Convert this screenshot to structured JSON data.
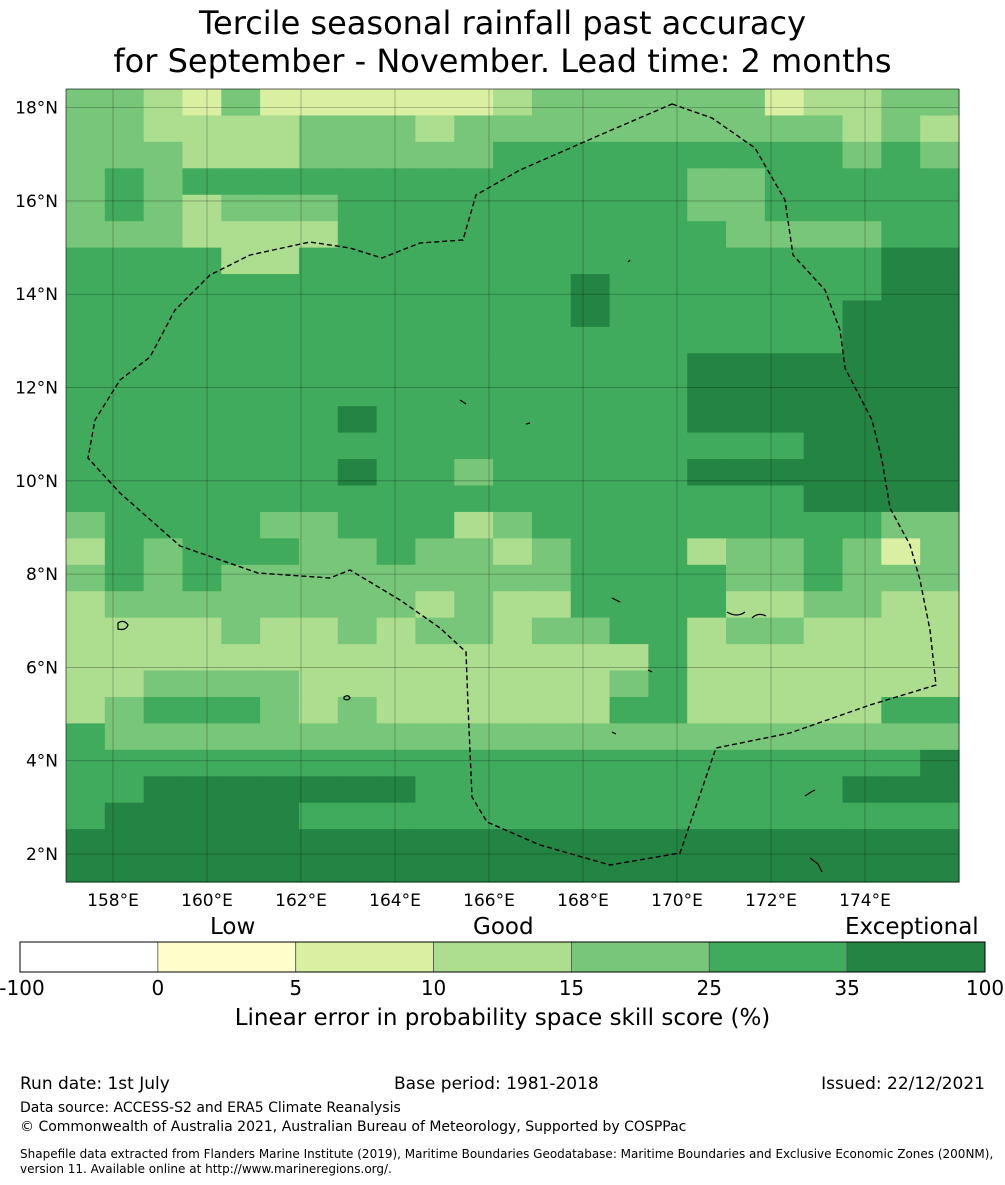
{
  "title": {
    "line1": "Tercile seasonal rainfall past accuracy",
    "line2": "for September - November. Lead time: 2 months"
  },
  "map": {
    "lat_ticks": [
      "18°N",
      "16°N",
      "14°N",
      "12°N",
      "10°N",
      "8°N",
      "6°N",
      "4°N",
      "2°N"
    ],
    "lon_ticks": [
      "158°E",
      "160°E",
      "162°E",
      "164°E",
      "166°E",
      "168°E",
      "170°E",
      "172°E",
      "174°E"
    ],
    "lat_range": [
      1.4,
      18.4
    ],
    "lon_range": [
      157.0,
      176.0
    ],
    "grid": true
  },
  "colorbar": {
    "category_labels": {
      "low": "Low",
      "good": "Good",
      "exceptional": "Exceptional"
    },
    "ticks": [
      "-100",
      "0",
      "5",
      "10",
      "15",
      "25",
      "35",
      "100"
    ],
    "colors": [
      "#ffffff",
      "#ffffcc",
      "#d9f0a3",
      "#addd8e",
      "#78c679",
      "#41ab5d",
      "#238443"
    ],
    "label": "Linear error in probability space skill score (%)"
  },
  "footer": {
    "run_date": "Run date: 1st July",
    "base_period": "Base period: 1981-2018",
    "issued": "Issued: 22/12/2021",
    "data_source": "Data source: ACCESS-S2 and ERA5 Climate Reanalysis",
    "copyright": "© Commonwealth of Australia 2021, Australian Bureau of Meteorology, Supported by COSPPac",
    "shapefile_line1": "Shapefile data extracted from Flanders Marine Institute (2019), Maritime Boundaries Geodatabase: Maritime Boundaries and Exclusive Economic Zones (200NM),",
    "shapefile_line2": "version 11. Available online at http://www.marineregions.org/."
  }
}
